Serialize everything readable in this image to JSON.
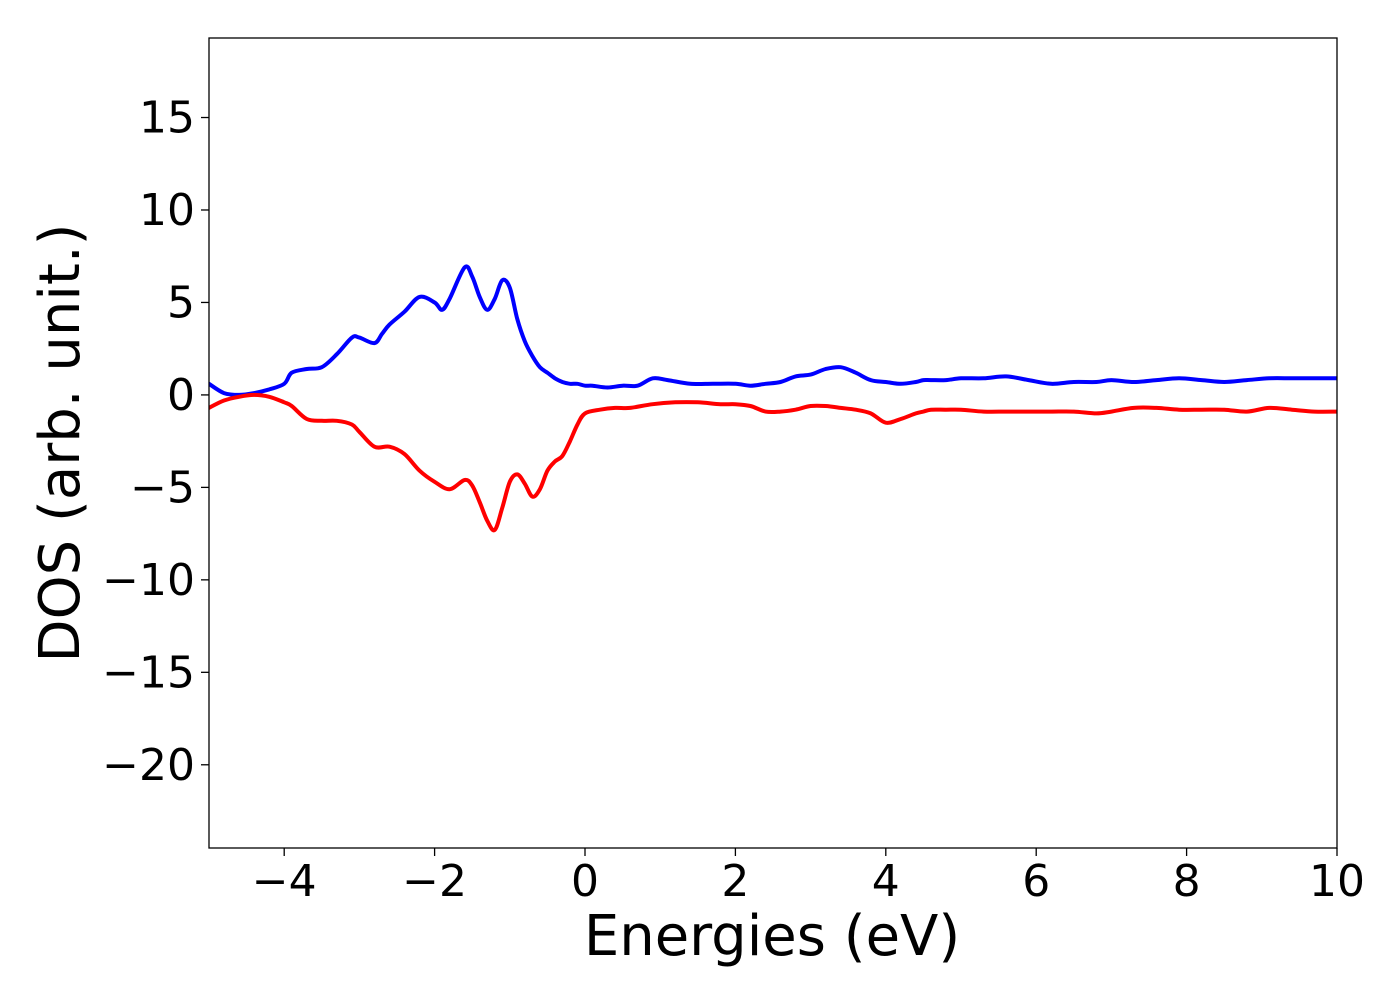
{
  "chart_data": {
    "type": "line",
    "title": "",
    "xlabel": "Energies (eV)",
    "ylabel": "DOS (arb. unit.)",
    "xlim": [
      -5,
      10
    ],
    "ylim": [
      -24.5,
      19.3
    ],
    "grid": false,
    "legend": "none",
    "xticks": [
      -4,
      -2,
      0,
      2,
      4,
      6,
      8,
      10
    ],
    "yticks": [
      -20,
      -15,
      -10,
      -5,
      0,
      5,
      10,
      15
    ],
    "xtick_labels": [
      "−4",
      "−2",
      "0",
      "2",
      "4",
      "6",
      "8",
      "10"
    ],
    "ytick_labels": [
      "−20",
      "−15",
      "−10",
      "−5",
      "0",
      "5",
      "10",
      "15"
    ],
    "series": [
      {
        "color": "#0000ff",
        "x": [
          -5.0,
          -4.8,
          -4.6,
          -4.4,
          -4.2,
          -4.0,
          -3.9,
          -3.7,
          -3.5,
          -3.3,
          -3.1,
          -3.0,
          -2.8,
          -2.7,
          -2.6,
          -2.4,
          -2.2,
          -2.0,
          -1.9,
          -1.8,
          -1.6,
          -1.5,
          -1.4,
          -1.3,
          -1.2,
          -1.1,
          -1.0,
          -0.9,
          -0.8,
          -0.7,
          -0.6,
          -0.5,
          -0.4,
          -0.3,
          -0.2,
          -0.1,
          0.0,
          0.1,
          0.3,
          0.5,
          0.7,
          0.9,
          1.1,
          1.4,
          1.7,
          2.0,
          2.2,
          2.4,
          2.6,
          2.8,
          3.0,
          3.2,
          3.4,
          3.6,
          3.8,
          4.0,
          4.2,
          4.4,
          4.5,
          4.6,
          4.8,
          5.0,
          5.3,
          5.6,
          5.9,
          6.2,
          6.5,
          6.8,
          7.0,
          7.3,
          7.6,
          7.9,
          8.2,
          8.5,
          8.8,
          9.1,
          9.4,
          9.7,
          10.0
        ],
        "y": [
          0.6,
          0.1,
          0.0,
          0.1,
          0.3,
          0.6,
          1.2,
          1.4,
          1.5,
          2.2,
          3.1,
          3.1,
          2.8,
          3.3,
          3.8,
          4.5,
          5.3,
          5.0,
          4.6,
          5.2,
          6.9,
          6.4,
          5.3,
          4.6,
          5.2,
          6.2,
          5.8,
          4.1,
          2.9,
          2.1,
          1.5,
          1.2,
          0.9,
          0.7,
          0.6,
          0.6,
          0.5,
          0.5,
          0.4,
          0.5,
          0.5,
          0.9,
          0.8,
          0.6,
          0.6,
          0.6,
          0.5,
          0.6,
          0.7,
          1.0,
          1.1,
          1.4,
          1.5,
          1.2,
          0.8,
          0.7,
          0.6,
          0.7,
          0.8,
          0.8,
          0.8,
          0.9,
          0.9,
          1.0,
          0.8,
          0.6,
          0.7,
          0.7,
          0.8,
          0.7,
          0.8,
          0.9,
          0.8,
          0.7,
          0.8,
          0.9,
          0.9,
          0.9,
          0.9
        ]
      },
      {
        "color": "#ff0000",
        "x": [
          -5.0,
          -4.8,
          -4.6,
          -4.4,
          -4.2,
          -4.0,
          -3.9,
          -3.7,
          -3.5,
          -3.3,
          -3.1,
          -3.0,
          -2.8,
          -2.6,
          -2.4,
          -2.2,
          -2.0,
          -1.8,
          -1.6,
          -1.5,
          -1.4,
          -1.3,
          -1.2,
          -1.1,
          -1.0,
          -0.9,
          -0.8,
          -0.7,
          -0.6,
          -0.5,
          -0.4,
          -0.3,
          -0.2,
          -0.1,
          0.0,
          0.2,
          0.4,
          0.6,
          0.9,
          1.2,
          1.5,
          1.8,
          2.0,
          2.2,
          2.4,
          2.6,
          2.8,
          3.0,
          3.2,
          3.4,
          3.6,
          3.8,
          4.0,
          4.2,
          4.4,
          4.5,
          4.6,
          4.8,
          5.0,
          5.3,
          5.6,
          5.9,
          6.2,
          6.5,
          6.8,
          7.0,
          7.3,
          7.6,
          7.9,
          8.2,
          8.5,
          8.8,
          9.1,
          9.4,
          9.7,
          10.0
        ],
        "y": [
          -0.7,
          -0.3,
          -0.1,
          0.0,
          -0.1,
          -0.4,
          -0.6,
          -1.3,
          -1.4,
          -1.4,
          -1.6,
          -2.0,
          -2.8,
          -2.8,
          -3.2,
          -4.1,
          -4.7,
          -5.1,
          -4.6,
          -4.9,
          -5.8,
          -6.8,
          -7.3,
          -6.1,
          -4.7,
          -4.3,
          -4.8,
          -5.5,
          -5.1,
          -4.1,
          -3.6,
          -3.3,
          -2.5,
          -1.6,
          -1.0,
          -0.8,
          -0.7,
          -0.7,
          -0.5,
          -0.4,
          -0.4,
          -0.5,
          -0.5,
          -0.6,
          -0.9,
          -0.9,
          -0.8,
          -0.6,
          -0.6,
          -0.7,
          -0.8,
          -1.0,
          -1.5,
          -1.3,
          -1.0,
          -0.9,
          -0.8,
          -0.8,
          -0.8,
          -0.9,
          -0.9,
          -0.9,
          -0.9,
          -0.9,
          -1.0,
          -0.9,
          -0.7,
          -0.7,
          -0.8,
          -0.8,
          -0.8,
          -0.9,
          -0.7,
          -0.8,
          -0.9,
          -0.9
        ]
      }
    ]
  }
}
